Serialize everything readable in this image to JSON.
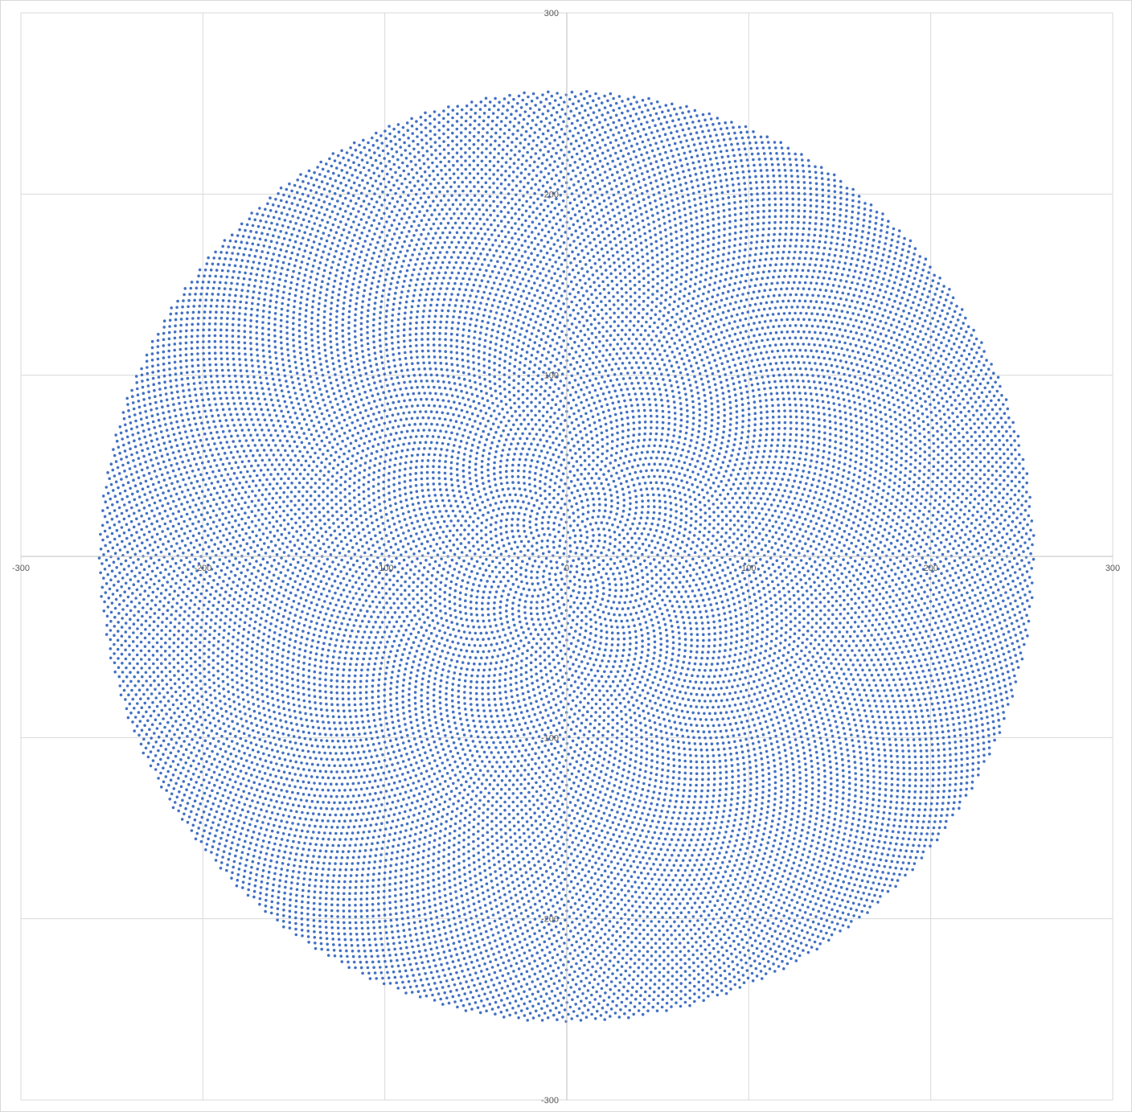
{
  "chart_data": {
    "type": "scatter",
    "title": "",
    "xlabel": "",
    "ylabel": "",
    "xlim": [
      -300,
      300
    ],
    "ylim": [
      -300,
      300
    ],
    "x_ticks": [
      -300,
      -200,
      -100,
      0,
      100,
      200,
      300
    ],
    "y_ticks": [
      -300,
      -200,
      -100,
      0,
      100,
      200,
      300
    ],
    "x_tick_labels": [
      "-300",
      "-200",
      "-100",
      "0",
      "100",
      "200",
      "300"
    ],
    "y_tick_labels": [
      "-300",
      "-200",
      "-100",
      "0",
      "100",
      "200",
      "300"
    ],
    "grid": true,
    "legend": "none",
    "series": [
      {
        "pattern": "phyllotaxis (golden-angle spiral)",
        "color": "#4472c4",
        "point_count": 20000,
        "max_radius": 257,
        "center": [
          0,
          0
        ]
      }
    ]
  }
}
